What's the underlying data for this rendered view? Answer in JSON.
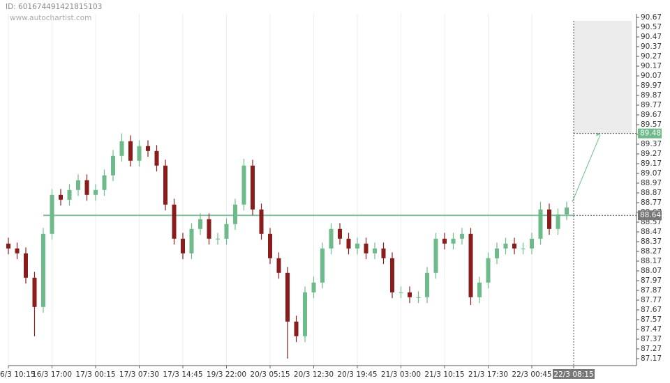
{
  "chart_data": {
    "type": "candlestick",
    "id_label": "ID: 601674491421815103",
    "source": "www.autochartist.com",
    "open": [
      88.35,
      88.3,
      88.25,
      88.0,
      87.7,
      88.45,
      88.85,
      88.8,
      88.9,
      89.0,
      88.85,
      88.9,
      89.05,
      89.25,
      89.4,
      89.2,
      89.35,
      89.3,
      89.15,
      88.75,
      88.4,
      88.25,
      88.5,
      88.6,
      88.4,
      88.4,
      88.55,
      88.75,
      89.15,
      88.7,
      88.45,
      88.2,
      88.05,
      87.55,
      87.4,
      87.85,
      87.95,
      88.3,
      88.5,
      88.4,
      88.3,
      88.35,
      88.25,
      88.3,
      88.2,
      87.85,
      87.85,
      87.8,
      87.8,
      88.05,
      88.4,
      88.35,
      88.4,
      88.45,
      87.8,
      87.95,
      88.2,
      88.3,
      88.35,
      88.3,
      88.3,
      88.4,
      88.7,
      88.5,
      88.65
    ],
    "high": [
      88.41,
      88.36,
      88.31,
      88.06,
      88.51,
      88.91,
      88.91,
      88.96,
      89.06,
      89.06,
      88.96,
      89.11,
      89.31,
      89.48,
      89.46,
      89.41,
      89.41,
      89.36,
      89.21,
      88.81,
      88.46,
      88.56,
      88.66,
      88.66,
      88.46,
      88.61,
      88.81,
      89.22,
      89.21,
      88.76,
      88.51,
      88.26,
      88.11,
      87.61,
      87.91,
      88.01,
      88.36,
      88.56,
      88.56,
      88.46,
      88.41,
      88.41,
      88.36,
      88.36,
      88.26,
      87.91,
      87.91,
      87.86,
      88.11,
      88.46,
      88.46,
      88.46,
      88.51,
      88.51,
      88.01,
      88.26,
      88.36,
      88.41,
      88.41,
      88.36,
      88.46,
      88.78,
      88.76,
      88.71,
      88.78
    ],
    "low": [
      88.24,
      88.19,
      87.94,
      87.4,
      87.64,
      88.39,
      88.74,
      88.74,
      88.84,
      88.79,
      88.79,
      88.84,
      88.99,
      89.19,
      89.14,
      89.14,
      89.24,
      89.09,
      88.69,
      88.34,
      88.19,
      88.19,
      88.44,
      88.34,
      88.34,
      88.34,
      88.49,
      88.69,
      88.64,
      88.39,
      88.14,
      87.99,
      87.17,
      87.34,
      87.34,
      87.79,
      87.89,
      88.24,
      88.34,
      88.24,
      88.24,
      88.19,
      88.19,
      88.14,
      87.79,
      87.79,
      87.74,
      87.74,
      87.74,
      87.99,
      88.29,
      88.29,
      88.34,
      87.72,
      87.74,
      87.89,
      88.14,
      88.24,
      88.24,
      88.24,
      88.24,
      88.34,
      88.44,
      88.44,
      88.59
    ],
    "close": [
      88.3,
      88.25,
      88.0,
      87.7,
      88.45,
      88.85,
      88.8,
      88.9,
      89.0,
      88.85,
      88.9,
      89.05,
      89.25,
      89.4,
      89.2,
      89.35,
      89.3,
      89.15,
      88.75,
      88.4,
      88.25,
      88.5,
      88.6,
      88.4,
      88.4,
      88.55,
      88.75,
      89.15,
      88.7,
      88.45,
      88.2,
      88.05,
      87.55,
      87.4,
      87.85,
      87.95,
      88.3,
      88.5,
      88.4,
      88.3,
      88.35,
      88.25,
      88.3,
      88.2,
      87.85,
      87.85,
      87.8,
      87.8,
      88.05,
      88.4,
      88.35,
      88.4,
      88.45,
      87.8,
      87.95,
      88.2,
      88.3,
      88.35,
      88.3,
      88.3,
      88.4,
      88.7,
      88.5,
      88.65,
      88.72
    ],
    "up_color": "#6dbb8a",
    "down_color": "#8b1c1c",
    "ylim": [
      87.17,
      90.67
    ],
    "yticks": [
      87.17,
      87.27,
      87.37,
      87.47,
      87.57,
      87.67,
      87.77,
      87.87,
      87.97,
      88.07,
      88.17,
      88.27,
      88.37,
      88.47,
      88.57,
      88.67,
      88.77,
      88.87,
      88.97,
      89.07,
      89.17,
      89.27,
      89.37,
      89.47,
      89.57,
      89.67,
      89.77,
      89.87,
      89.97,
      90.07,
      90.17,
      90.27,
      90.37,
      90.47,
      90.57,
      90.67
    ],
    "xlim": [
      0,
      72
    ],
    "xticks": [
      {
        "value": 0,
        "label": "6/3 10:15"
      },
      {
        "value": 5,
        "label": "16/3 17:00"
      },
      {
        "value": 10,
        "label": "17/3 00:15"
      },
      {
        "value": 15,
        "label": "17/3 07:30"
      },
      {
        "value": 20,
        "label": "17/3 14:45"
      },
      {
        "value": 25,
        "label": "19/3 22:00"
      },
      {
        "value": 30,
        "label": "20/3 05:15"
      },
      {
        "value": 35,
        "label": "20/3 12:30"
      },
      {
        "value": 40,
        "label": "20/3 19:45"
      },
      {
        "value": 45,
        "label": "21/3 03:00"
      },
      {
        "value": 50,
        "label": "21/3 10:15"
      },
      {
        "value": 55,
        "label": "21/3 17:30"
      },
      {
        "value": 60,
        "label": "22/3 00:45"
      },
      {
        "value": 64.8,
        "label": "22/3 08:15"
      }
    ],
    "grid": true,
    "resistance": {
      "value": 88.64,
      "color": "#7fc29b"
    },
    "forecast": {
      "value": 89.48,
      "color": "#6dbb8a"
    }
  }
}
